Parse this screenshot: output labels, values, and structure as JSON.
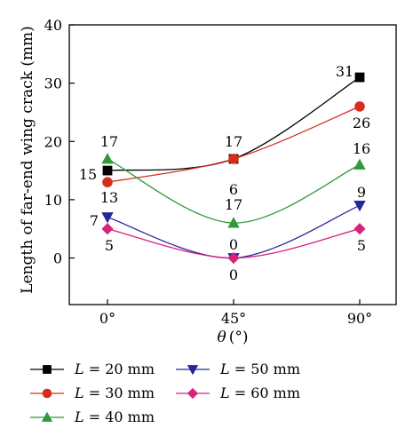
{
  "chart_data": {
    "type": "line",
    "xlabel_symbol": "θ",
    "xlabel_unit": "(°)",
    "ylabel": "Length of far-end wing crack (mm)",
    "categories": [
      "0°",
      "45°",
      "90°"
    ],
    "x": [
      0,
      45,
      90
    ],
    "ylim": [
      -8,
      40
    ],
    "yticks": [
      0,
      10,
      20,
      30,
      40
    ],
    "legend_position": "bottom",
    "series": [
      {
        "name": "L = 20 mm",
        "legend_var": "L",
        "legend_rest": " = 20 mm",
        "color": "#000000",
        "marker": "square",
        "values": [
          15,
          17,
          31
        ],
        "labels": [
          "15",
          "17",
          "31"
        ]
      },
      {
        "name": "L = 30 mm",
        "legend_var": "L",
        "legend_rest": " = 30 mm",
        "color": "#d62e1c",
        "marker": "circle",
        "values": [
          13,
          17,
          26
        ],
        "labels": [
          "13",
          "17",
          "26"
        ]
      },
      {
        "name": "L = 40 mm",
        "legend_var": "L",
        "legend_rest": " = 40 mm",
        "color": "#2e9a3a",
        "marker": "triangle-up",
        "values": [
          17,
          6,
          16
        ],
        "labels": [
          "17",
          "6",
          "16"
        ]
      },
      {
        "name": "L = 50 mm",
        "legend_var": "L",
        "legend_rest": " = 50 mm",
        "color": "#26269a",
        "marker": "triangle-down",
        "values": [
          7,
          0,
          9
        ],
        "labels": [
          "7",
          "0",
          "9"
        ]
      },
      {
        "name": "L = 60 mm",
        "legend_var": "L",
        "legend_rest": " = 60 mm",
        "color": "#d6237c",
        "marker": "diamond",
        "values": [
          5,
          0,
          5
        ],
        "labels": [
          "5",
          "0",
          "5"
        ]
      }
    ]
  }
}
